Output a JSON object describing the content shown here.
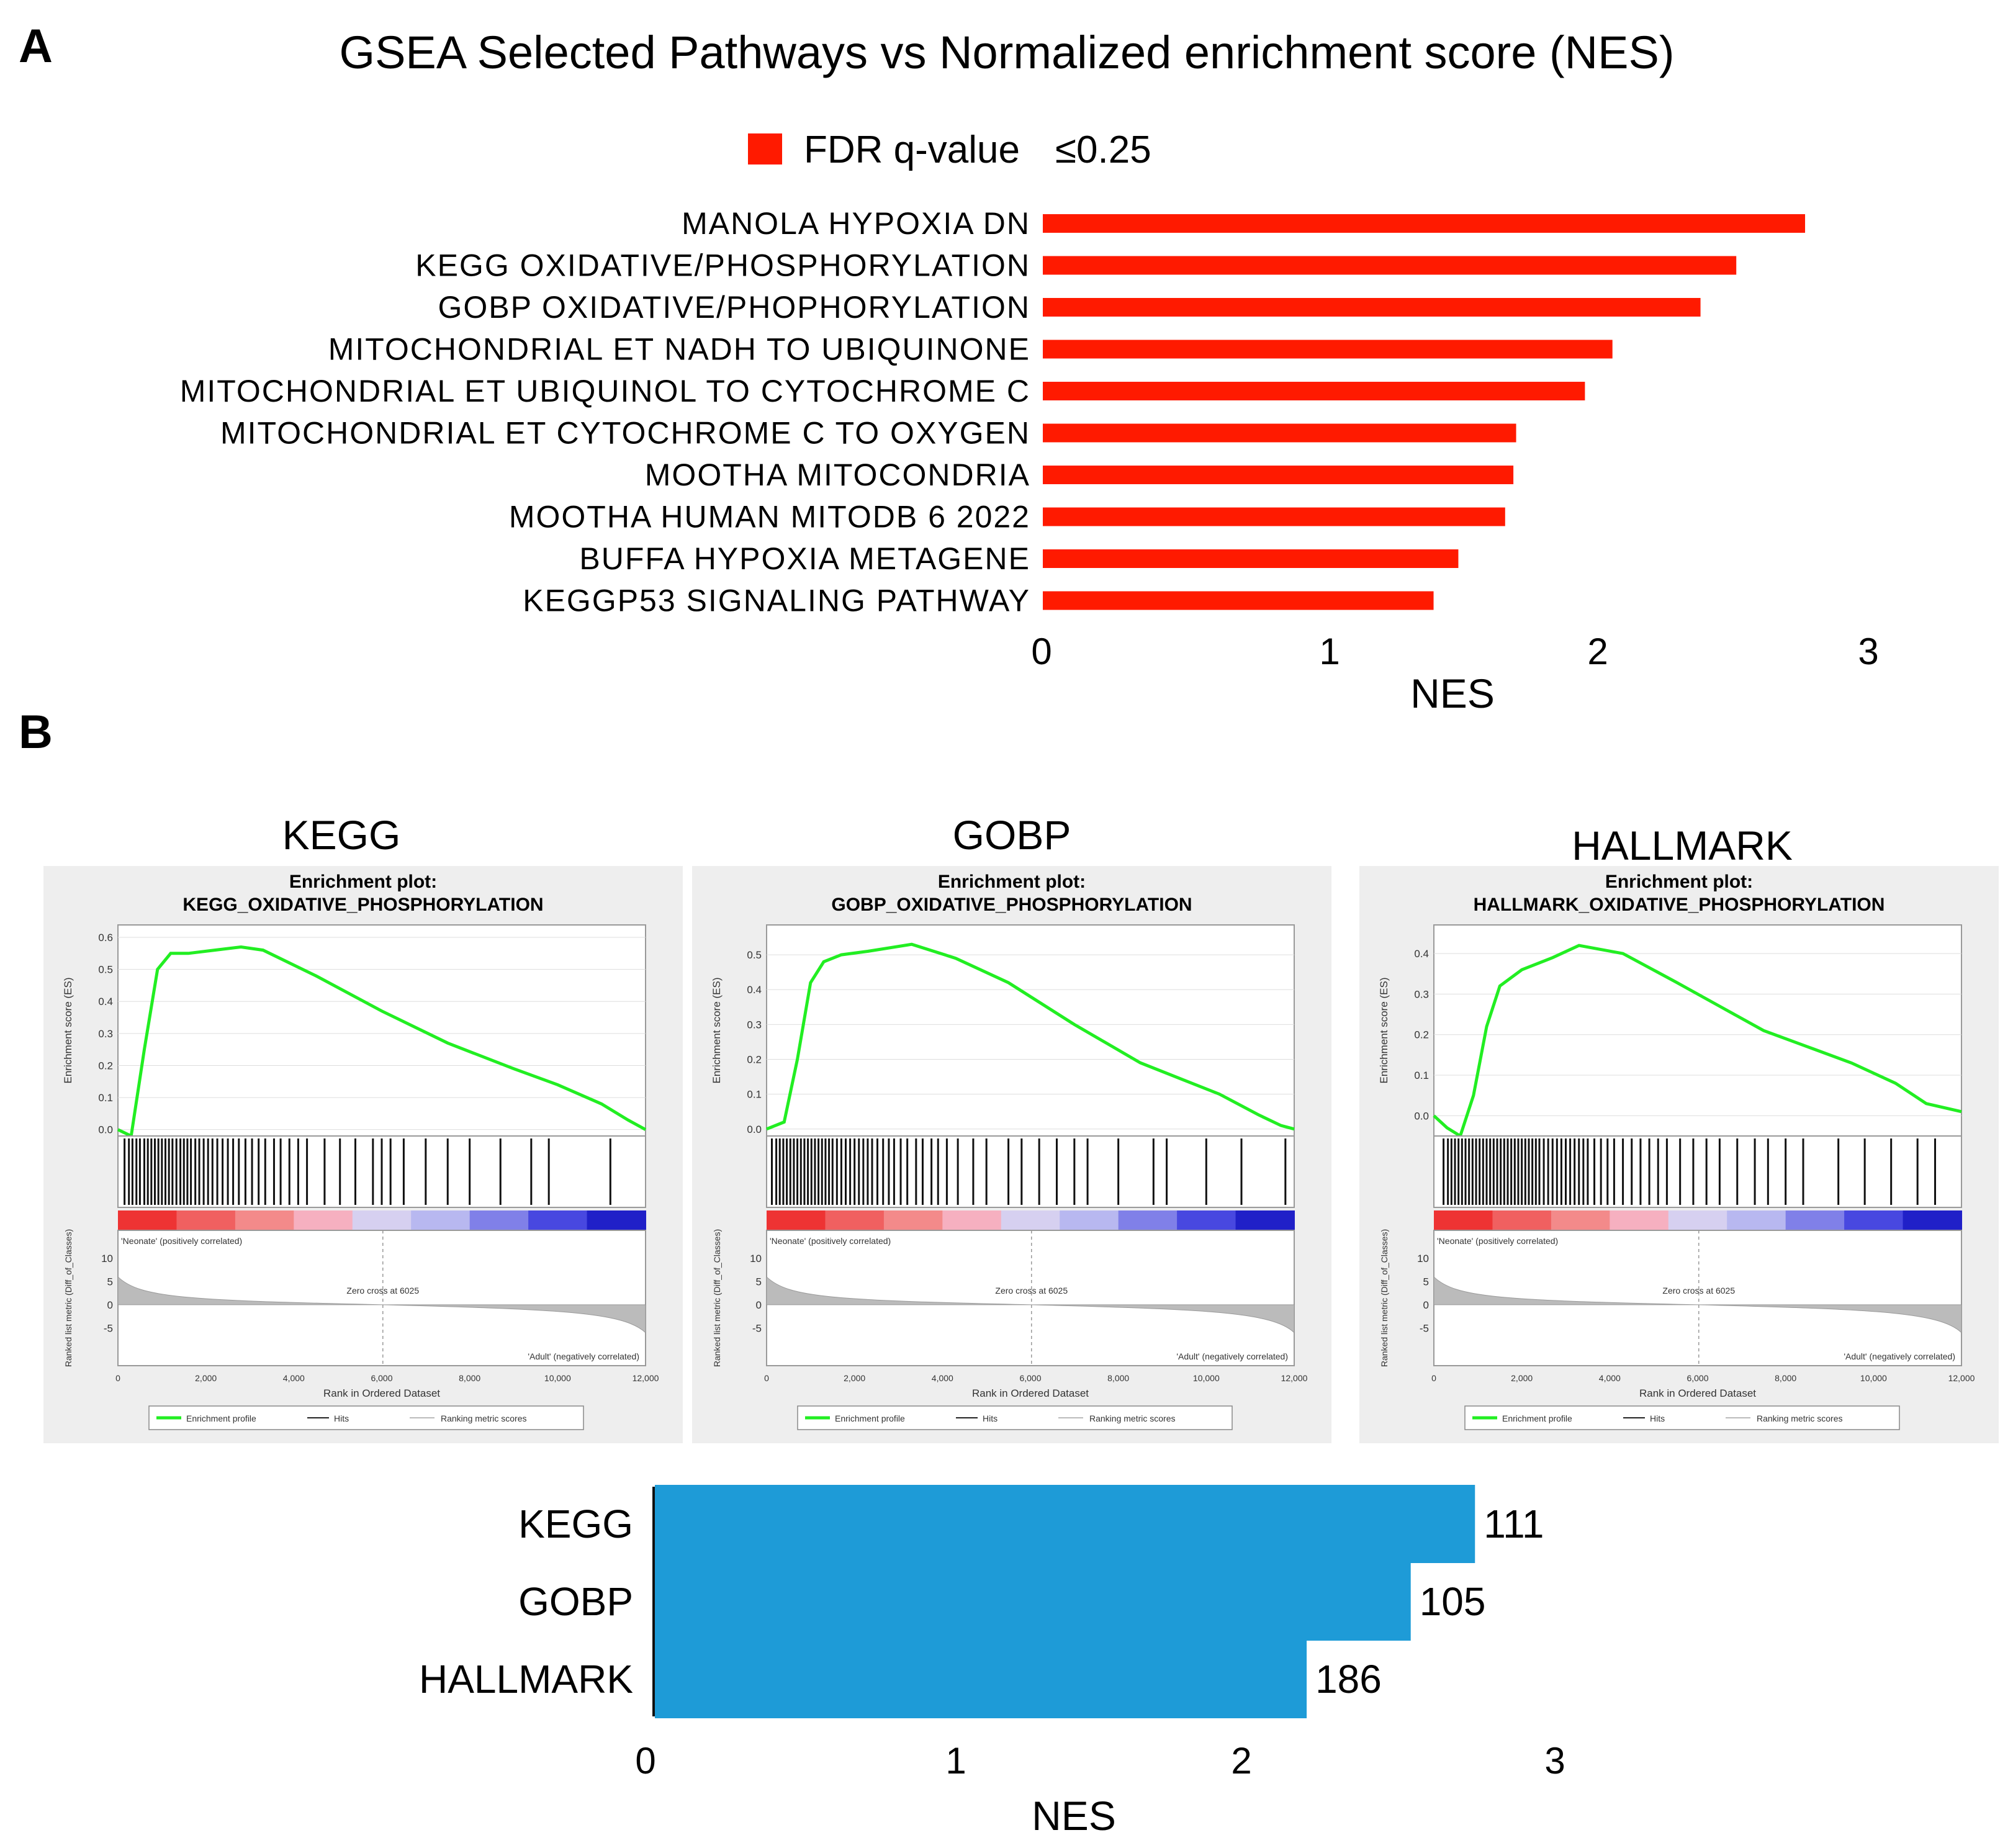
{
  "panels": {
    "a_letter": "A",
    "b_letter": "B"
  },
  "colors": {
    "bar_red": "#ff1a00",
    "bar_blue": "#1e9bd7",
    "curve_green": "#22ee22",
    "hit_black": "#111111"
  },
  "chart_data": [
    {
      "type": "bar",
      "orientation": "horizontal",
      "title": "GSEA Selected Pathways vs Normalized enrichment score (NES)",
      "legend": {
        "label": "FDR q-value",
        "threshold": "≤0.25",
        "placement": "top-center"
      },
      "categories": [
        "MANOLA HYPOXIA DN",
        "KEGG OXIDATIVE/PHOSPHORYLATION",
        "GOBP OXIDATIVE/PHOPHORYLATION",
        "MITOCHONDRIAL  ET NADH TO UBIQUINONE",
        "MITOCHONDRIAL  ET UBIQUINOL  TO CYTOCHROME  C",
        "MITOCHONDRIAL  ET CYTOCHROME  C TO OXYGEN",
        "MOOTHA  MITOCONDRIA",
        "MOOTHA  HUMAN  MITODB  6 2022",
        "BUFFA  HYPOXIA  METAGENE",
        "KEGGP53  SIGNALING  PATHWAY"
      ],
      "values": [
        2.77,
        2.52,
        2.39,
        2.07,
        1.97,
        1.72,
        1.71,
        1.68,
        1.51,
        1.42
      ],
      "xlabel": "NES",
      "xlim": [
        0,
        3
      ],
      "xticks": [
        "0",
        "1",
        "2",
        "3"
      ]
    },
    {
      "type": "bar",
      "orientation": "horizontal",
      "title": "",
      "categories": [
        "KEGG",
        "GOBP",
        "HALLMARK"
      ],
      "values": [
        2.68,
        2.47,
        2.13
      ],
      "counts": [
        "111",
        "105",
        "186"
      ],
      "xlabel": "NES",
      "xlim": [
        0,
        3
      ],
      "xticks": [
        "0",
        "1",
        "2",
        "3"
      ]
    }
  ],
  "enrichment_plots": [
    {
      "column_title": "KEGG",
      "plot_title": "Enrichment plot:",
      "gene_set": "KEGG_OXIDATIVE_PHOSPHORYLATION",
      "es_ticks": [
        "0.6",
        "0.5",
        "0.4",
        "0.3",
        "0.2",
        "0.1",
        "0.0"
      ],
      "es_max": 0.6,
      "es_min": -0.02,
      "es_curve": [
        [
          0,
          0.0
        ],
        [
          300,
          -0.02
        ],
        [
          600,
          0.25
        ],
        [
          900,
          0.5
        ],
        [
          1200,
          0.55
        ],
        [
          1600,
          0.55
        ],
        [
          2200,
          0.56
        ],
        [
          2800,
          0.57
        ],
        [
          3300,
          0.56
        ],
        [
          4500,
          0.48
        ],
        [
          6000,
          0.37
        ],
        [
          7500,
          0.27
        ],
        [
          9000,
          0.19
        ],
        [
          10000,
          0.14
        ],
        [
          11000,
          0.08
        ],
        [
          11600,
          0.03
        ],
        [
          12000,
          0.0
        ]
      ],
      "hits": [
        150,
        250,
        330,
        420,
        500,
        600,
        680,
        760,
        840,
        920,
        1000,
        1080,
        1160,
        1240,
        1330,
        1420,
        1500,
        1580,
        1660,
        1760,
        1850,
        1950,
        2050,
        2150,
        2260,
        2380,
        2500,
        2620,
        2750,
        2900,
        3050,
        3200,
        3350,
        3550,
        3700,
        3900,
        4100,
        4300,
        4700,
        5050,
        5400,
        5800,
        6000,
        6200,
        6500,
        7000,
        7500,
        8000,
        8700,
        9400,
        9800,
        11200
      ],
      "ylabel": "Enrichment score (ES)",
      "metric_ylabel": "Ranked list metric (Diff_of_Classes)",
      "metric_ticks": [
        "10",
        "5",
        "0",
        "-5"
      ],
      "pos_label": "'Neonate' (positively correlated)",
      "neg_label": "'Adult' (negatively correlated)",
      "zero_cross": "Zero cross at 6025",
      "x_ticks": [
        "0",
        "2,000",
        "4,000",
        "6,000",
        "8,000",
        "10,000",
        "12,000"
      ],
      "xlabel": "Rank in Ordered Dataset",
      "legend": [
        "Enrichment profile",
        "Hits",
        "Ranking metric scores"
      ]
    },
    {
      "column_title": "GOBP",
      "plot_title": "Enrichment plot:",
      "gene_set": "GOBP_OXIDATIVE_PHOSPHORYLATION",
      "es_ticks": [
        "0.5",
        "0.4",
        "0.3",
        "0.2",
        "0.1",
        "0.0"
      ],
      "es_max": 0.55,
      "es_min": -0.02,
      "es_curve": [
        [
          0,
          0.0
        ],
        [
          400,
          0.02
        ],
        [
          700,
          0.2
        ],
        [
          1000,
          0.42
        ],
        [
          1300,
          0.48
        ],
        [
          1700,
          0.5
        ],
        [
          2300,
          0.51
        ],
        [
          3300,
          0.53
        ],
        [
          4300,
          0.49
        ],
        [
          5500,
          0.42
        ],
        [
          7000,
          0.3
        ],
        [
          8500,
          0.19
        ],
        [
          9500,
          0.14
        ],
        [
          10300,
          0.1
        ],
        [
          11200,
          0.04
        ],
        [
          11700,
          0.01
        ],
        [
          12000,
          0.0
        ]
      ],
      "hits": [
        120,
        220,
        300,
        380,
        460,
        540,
        620,
        700,
        780,
        860,
        940,
        1020,
        1100,
        1180,
        1260,
        1340,
        1420,
        1500,
        1600,
        1700,
        1800,
        1900,
        2000,
        2100,
        2200,
        2300,
        2400,
        2520,
        2650,
        2780,
        2900,
        3050,
        3200,
        3400,
        3550,
        3750,
        3900,
        4100,
        4350,
        4700,
        5000,
        5500,
        5800,
        6200,
        6600,
        7000,
        7300,
        8000,
        8800,
        9100,
        10000,
        10800,
        11800
      ],
      "ylabel": "Enrichment score (ES)",
      "metric_ylabel": "Ranked list metric (Diff_of_Classes)",
      "metric_ticks": [
        "10",
        "5",
        "0",
        "-5"
      ],
      "pos_label": "'Neonate' (positively correlated)",
      "neg_label": "'Adult' (negatively correlated)",
      "zero_cross": "Zero cross at 6025",
      "x_ticks": [
        "0",
        "2,000",
        "4,000",
        "6,000",
        "8,000",
        "10,000",
        "12,000"
      ],
      "xlabel": "Rank in Ordered Dataset",
      "legend": [
        "Enrichment profile",
        "Hits",
        "Ranking metric scores"
      ]
    },
    {
      "column_title": "HALLMARK",
      "plot_title": "Enrichment plot:",
      "gene_set": "HALLMARK_OXIDATIVE_PHOSPHORYLATION",
      "es_ticks": [
        "0.4",
        "0.3",
        "0.2",
        "0.1",
        "0.0"
      ],
      "es_max": 0.44,
      "es_min": -0.05,
      "es_curve": [
        [
          0,
          0.0
        ],
        [
          300,
          -0.03
        ],
        [
          600,
          -0.05
        ],
        [
          900,
          0.05
        ],
        [
          1200,
          0.22
        ],
        [
          1500,
          0.32
        ],
        [
          2000,
          0.36
        ],
        [
          2700,
          0.39
        ],
        [
          3300,
          0.42
        ],
        [
          4300,
          0.4
        ],
        [
          5500,
          0.33
        ],
        [
          6500,
          0.27
        ],
        [
          7500,
          0.21
        ],
        [
          8500,
          0.17
        ],
        [
          9500,
          0.13
        ],
        [
          10500,
          0.08
        ],
        [
          11200,
          0.03
        ],
        [
          11600,
          0.02
        ],
        [
          12000,
          0.01
        ]
      ],
      "hits": [
        220,
        320,
        400,
        480,
        560,
        640,
        720,
        800,
        880,
        960,
        1040,
        1120,
        1200,
        1280,
        1360,
        1440,
        1520,
        1600,
        1680,
        1760,
        1840,
        1920,
        2000,
        2080,
        2160,
        2240,
        2320,
        2400,
        2500,
        2600,
        2700,
        2800,
        2900,
        3000,
        3100,
        3200,
        3300,
        3400,
        3500,
        3650,
        3800,
        3950,
        4100,
        4300,
        4500,
        4700,
        4900,
        5100,
        5300,
        5600,
        5900,
        6200,
        6500,
        6900,
        7300,
        7600,
        8000,
        8400,
        9200,
        9800,
        10400,
        11000,
        11400
      ],
      "ylabel": "Enrichment score (ES)",
      "metric_ylabel": "Ranked list metric (Diff_of_Classes)",
      "metric_ticks": [
        "10",
        "5",
        "0",
        "-5"
      ],
      "pos_label": "'Neonate' (positively correlated)",
      "neg_label": "'Adult' (negatively correlated)",
      "zero_cross": "Zero cross at 6025",
      "x_ticks": [
        "0",
        "2,000",
        "4,000",
        "6,000",
        "8,000",
        "10,000",
        "12,000"
      ],
      "xlabel": "Rank in Ordered Dataset",
      "legend": [
        "Enrichment profile",
        "Hits",
        "Ranking metric scores"
      ]
    }
  ]
}
